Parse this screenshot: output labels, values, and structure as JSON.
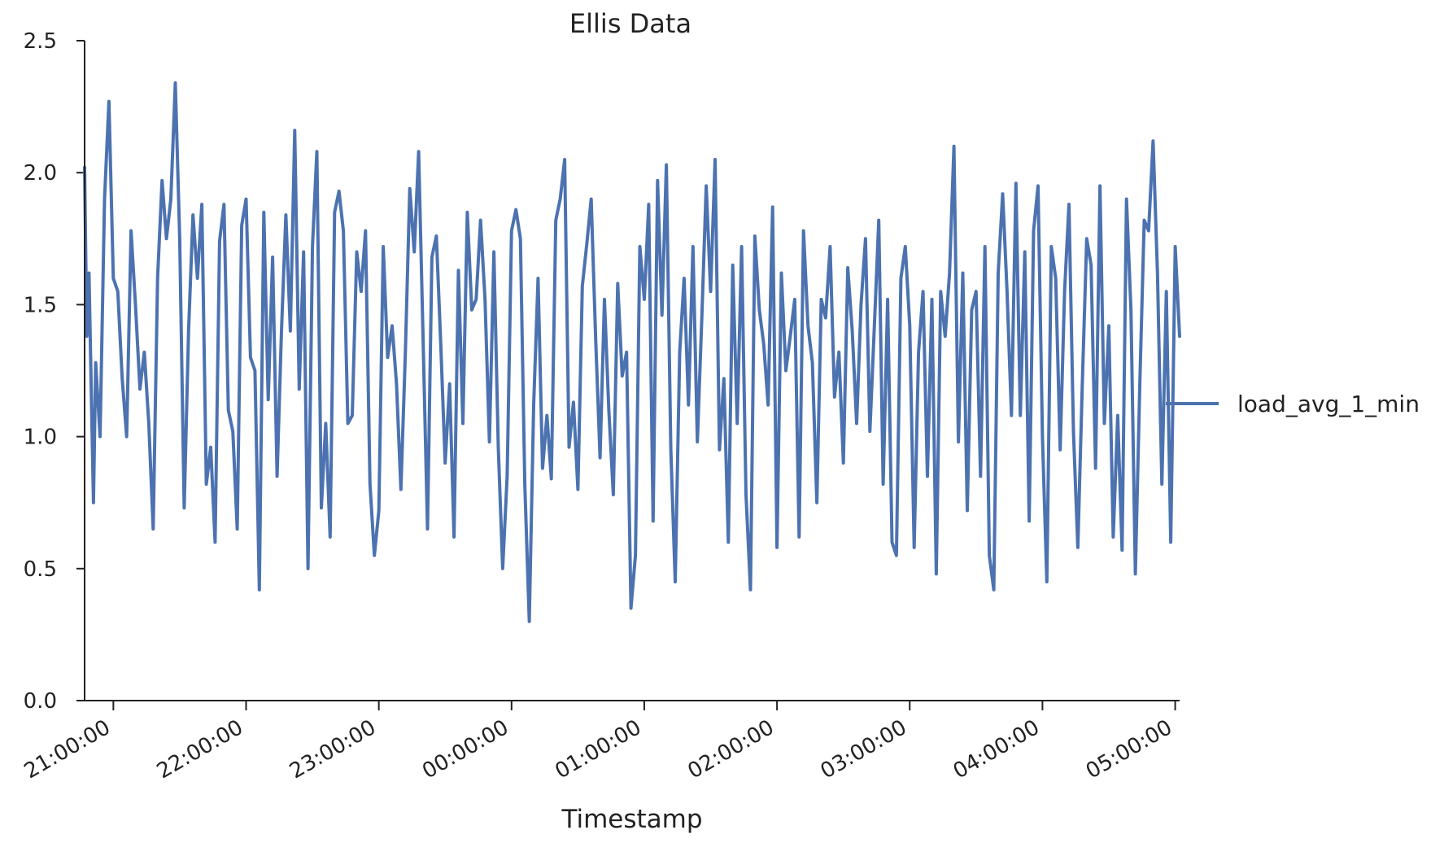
{
  "chart_data": {
    "type": "line",
    "title": "Ellis Data",
    "xlabel": "Timestamp",
    "ylabel": "",
    "ylim": [
      0.0,
      2.5
    ],
    "yticks": [
      "0.0",
      "0.5",
      "1.0",
      "1.5",
      "2.0",
      "2.5"
    ],
    "xticks": [
      "21:00:00",
      "22:00:00",
      "23:00:00",
      "00:00:00",
      "01:00:00",
      "02:00:00",
      "03:00:00",
      "04:00:00",
      "05:00:00"
    ],
    "xlim": [
      "20:47",
      "05:02"
    ],
    "grid": false,
    "legend_position": "right",
    "x": [
      "20:47",
      "20:48",
      "20:49",
      "20:50",
      "20:51",
      "20:52",
      "20:54",
      "20:56",
      "20:58",
      "21:00",
      "21:02",
      "21:04",
      "21:06",
      "21:08",
      "21:10",
      "21:12",
      "21:14",
      "21:16",
      "21:18",
      "21:20",
      "21:22",
      "21:24",
      "21:26",
      "21:28",
      "21:30",
      "21:32",
      "21:34",
      "21:36",
      "21:38",
      "21:40",
      "21:42",
      "21:44",
      "21:46",
      "21:48",
      "21:50",
      "21:52",
      "21:54",
      "21:56",
      "21:58",
      "22:00",
      "22:02",
      "22:04",
      "22:06",
      "22:08",
      "22:10",
      "22:12",
      "22:14",
      "22:16",
      "22:18",
      "22:20",
      "22:22",
      "22:24",
      "22:26",
      "22:28",
      "22:30",
      "22:32",
      "22:34",
      "22:36",
      "22:38",
      "22:40",
      "22:42",
      "22:44",
      "22:46",
      "22:48",
      "22:50",
      "22:52",
      "22:54",
      "22:56",
      "22:58",
      "23:00",
      "23:02",
      "23:04",
      "23:06",
      "23:08",
      "23:10",
      "23:12",
      "23:14",
      "23:16",
      "23:18",
      "23:20",
      "23:22",
      "23:24",
      "23:26",
      "23:28",
      "23:30",
      "23:32",
      "23:34",
      "23:36",
      "23:38",
      "23:40",
      "23:42",
      "23:44",
      "23:46",
      "23:48",
      "23:50",
      "23:52",
      "23:54",
      "23:56",
      "23:58",
      "00:00",
      "00:02",
      "00:04",
      "00:06",
      "00:08",
      "00:10",
      "00:12",
      "00:14",
      "00:16",
      "00:18",
      "00:20",
      "00:22",
      "00:24",
      "00:26",
      "00:28",
      "00:30",
      "00:32",
      "00:34",
      "00:36",
      "00:38",
      "00:40",
      "00:42",
      "00:44",
      "00:46",
      "00:48",
      "00:50",
      "00:52",
      "00:54",
      "00:56",
      "00:58",
      "01:00",
      "01:02",
      "01:04",
      "01:06",
      "01:08",
      "01:10",
      "01:12",
      "01:14",
      "01:16",
      "01:18",
      "01:20",
      "01:22",
      "01:24",
      "01:26",
      "01:28",
      "01:30",
      "01:32",
      "01:34",
      "01:36",
      "01:38",
      "01:40",
      "01:42",
      "01:44",
      "01:46",
      "01:48",
      "01:50",
      "01:52",
      "01:54",
      "01:56",
      "01:58",
      "02:00",
      "02:02",
      "02:04",
      "02:06",
      "02:08",
      "02:10",
      "02:12",
      "02:14",
      "02:16",
      "02:18",
      "02:20",
      "02:22",
      "02:24",
      "02:26",
      "02:28",
      "02:30",
      "02:32",
      "02:34",
      "02:36",
      "02:38",
      "02:40",
      "02:42",
      "02:44",
      "02:46",
      "02:48",
      "02:50",
      "02:52",
      "02:54",
      "02:56",
      "02:58",
      "03:00",
      "03:02",
      "03:04",
      "03:06",
      "03:08",
      "03:10",
      "03:12",
      "03:14",
      "03:16",
      "03:18",
      "03:20",
      "03:22",
      "03:24",
      "03:26",
      "03:28",
      "03:30",
      "03:32",
      "03:34",
      "03:36",
      "03:38",
      "03:40",
      "03:42",
      "03:44",
      "03:46",
      "03:48",
      "03:50",
      "03:52",
      "03:54",
      "03:56",
      "03:58",
      "04:00",
      "04:02",
      "04:04",
      "04:06",
      "04:08",
      "04:10",
      "04:12",
      "04:14",
      "04:16",
      "04:18",
      "04:20",
      "04:22",
      "04:24",
      "04:26",
      "04:28",
      "04:30",
      "04:32",
      "04:34",
      "04:36",
      "04:38",
      "04:40",
      "04:42",
      "04:44",
      "04:46",
      "04:48",
      "04:50",
      "04:52",
      "04:54",
      "04:56",
      "04:58",
      "05:00",
      "05:02"
    ],
    "series": [
      {
        "name": "load_avg_1_min",
        "color": "#4c72b0",
        "values": [
          2.02,
          1.38,
          1.62,
          1.17,
          0.75,
          1.28,
          1.0,
          1.9,
          2.27,
          1.6,
          1.55,
          1.22,
          1.0,
          1.78,
          1.5,
          1.18,
          1.32,
          1.05,
          0.65,
          1.6,
          1.97,
          1.75,
          1.9,
          2.34,
          1.75,
          0.73,
          1.4,
          1.84,
          1.6,
          1.88,
          0.82,
          0.96,
          0.6,
          1.74,
          1.88,
          1.1,
          1.02,
          0.65,
          1.8,
          1.9,
          1.3,
          1.25,
          0.42,
          1.85,
          1.14,
          1.68,
          0.85,
          1.4,
          1.84,
          1.4,
          2.16,
          1.18,
          1.7,
          0.5,
          1.72,
          2.08,
          0.73,
          1.05,
          0.62,
          1.85,
          1.93,
          1.78,
          1.05,
          1.08,
          1.7,
          1.55,
          1.78,
          0.82,
          0.55,
          0.72,
          1.72,
          1.3,
          1.42,
          1.2,
          0.8,
          1.32,
          1.94,
          1.7,
          2.08,
          1.38,
          0.65,
          1.68,
          1.76,
          1.35,
          0.9,
          1.2,
          0.62,
          1.63,
          1.05,
          1.85,
          1.48,
          1.52,
          1.82,
          1.52,
          0.98,
          1.7,
          0.96,
          0.5,
          0.85,
          1.78,
          1.86,
          1.75,
          0.82,
          0.3,
          1.12,
          1.6,
          0.88,
          1.08,
          0.84,
          1.82,
          1.9,
          2.05,
          0.96,
          1.13,
          0.8,
          1.57,
          1.73,
          1.9,
          1.38,
          0.92,
          1.52,
          1.1,
          0.78,
          1.58,
          1.23,
          1.32,
          0.35,
          0.55,
          1.72,
          1.52,
          1.88,
          0.68,
          1.97,
          1.46,
          2.03,
          0.95,
          0.45,
          1.32,
          1.6,
          1.12,
          1.72,
          0.98,
          1.45,
          1.95,
          1.55,
          2.05,
          0.95,
          1.22,
          0.6,
          1.65,
          1.05,
          1.72,
          0.78,
          0.42,
          1.76,
          1.48,
          1.35,
          1.12,
          1.87,
          0.58,
          1.62,
          1.25,
          1.38,
          1.52,
          0.62,
          1.78,
          1.42,
          1.28,
          0.75,
          1.52,
          1.45,
          1.72,
          1.15,
          1.32,
          0.9,
          1.64,
          1.4,
          1.05,
          1.5,
          1.75,
          1.02,
          1.42,
          1.82,
          0.82,
          1.52,
          0.6,
          0.55,
          1.6,
          1.72,
          1.42,
          0.58,
          1.32,
          1.55,
          0.85,
          1.52,
          0.48,
          1.55,
          1.38,
          1.62,
          2.1,
          0.98,
          1.62,
          0.72,
          1.48,
          1.55,
          0.85,
          1.72,
          0.55,
          0.42,
          1.62,
          1.92,
          1.55,
          1.08,
          1.96,
          1.08,
          1.7,
          0.68,
          1.78,
          1.95,
          1.0,
          0.45,
          1.72,
          1.6,
          0.95,
          1.55,
          1.88,
          1.02,
          0.58,
          1.2,
          1.75,
          1.65,
          0.88,
          1.95,
          1.05,
          1.42,
          0.62,
          1.08,
          0.57,
          1.9,
          1.48,
          0.48,
          1.2,
          1.82,
          1.78,
          2.12,
          1.62,
          0.82,
          1.55,
          0.6,
          1.72,
          1.38
        ]
      }
    ]
  }
}
